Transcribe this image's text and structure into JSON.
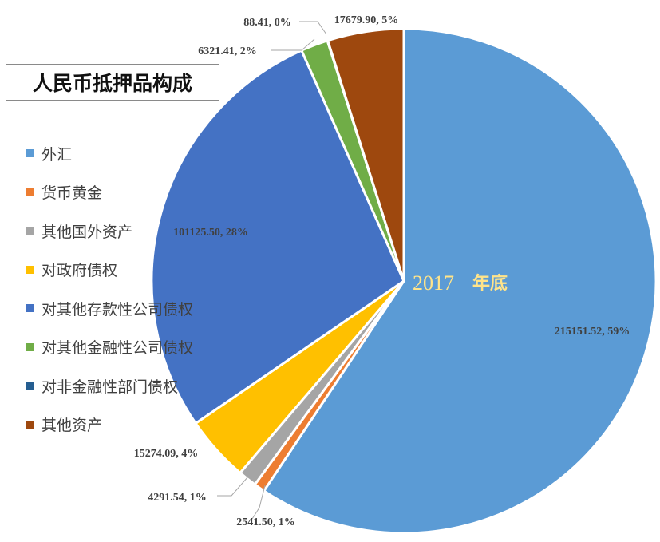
{
  "chart_data": {
    "type": "pie",
    "title": "人民币抵押品构成",
    "center_label": {
      "year": "2017",
      "unit": "年底"
    },
    "legend_position": "left",
    "slices": [
      {
        "name": "外汇",
        "value": 215151.52,
        "percent_label": "59%",
        "color": "#5b9bd5"
      },
      {
        "name": "货币黄金",
        "value": 2541.5,
        "percent_label": "1%",
        "color": "#ed7d31"
      },
      {
        "name": "其他国外资产",
        "value": 4291.54,
        "percent_label": "1%",
        "color": "#a5a5a5"
      },
      {
        "name": "对政府债权",
        "value": 15274.09,
        "percent_label": "4%",
        "color": "#ffc000"
      },
      {
        "name": "对其他存款性公司债权",
        "value": 101125.5,
        "percent_label": "28%",
        "color": "#4472c4"
      },
      {
        "name": "对其他金融性公司债权",
        "value": 6321.41,
        "percent_label": "2%",
        "color": "#70ad47"
      },
      {
        "name": "对非金融性部门债权",
        "value": 88.41,
        "percent_label": "0%",
        "color": "#255e91"
      },
      {
        "name": "其他资产",
        "value": 17679.9,
        "percent_label": "5%",
        "color": "#9e480e"
      }
    ],
    "data_labels": [
      "215151.52, 59%",
      "2541.50, 1%",
      "4291.54, 1%",
      "15274.09, 4%",
      "101125.50, 28%",
      "6321.41, 2%",
      "88.41, 0%",
      "17679.90, 5%"
    ]
  }
}
